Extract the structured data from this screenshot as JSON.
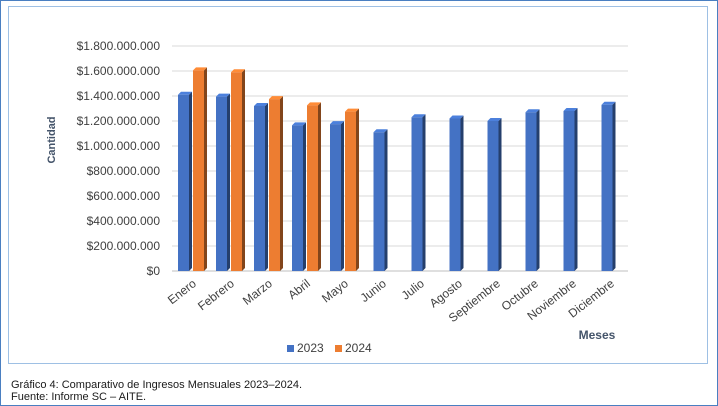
{
  "chart_data": {
    "type": "bar",
    "categories": [
      "Enero",
      "Febrero",
      "Marzo",
      "Abril",
      "Mayo",
      "Junio",
      "Julio",
      "Agosto",
      "Septiembre",
      "Octubre",
      "Noviembre",
      "Diciembre"
    ],
    "series": [
      {
        "name": "2023",
        "color": "#4472c4",
        "values": [
          1410000000,
          1395000000,
          1320000000,
          1165000000,
          1175000000,
          1110000000,
          1230000000,
          1220000000,
          1200000000,
          1270000000,
          1280000000,
          1330000000
        ]
      },
      {
        "name": "2024",
        "color": "#ed7d31",
        "values": [
          1605000000,
          1590000000,
          1375000000,
          1325000000,
          1275000000,
          null,
          null,
          null,
          null,
          null,
          null,
          null
        ]
      }
    ],
    "ylabel": "Cantidad",
    "xlabel": "Meses",
    "ylim": [
      0,
      1800000000
    ],
    "yticks": [
      "$0",
      "$200.000.000",
      "$400.000.000",
      "$600.000.000",
      "$800.000.000",
      "$1.000.000.000",
      "$1.200.000.000",
      "$1.400.000.000",
      "$1.600.000.000",
      "$1.800.000.000"
    ],
    "grid": true,
    "legend_position": "bottom"
  },
  "caption": {
    "line1": "Gráfico 4: Comparativo  de  Ingresos Mensuales  2023–2024.",
    "line2": "Fuente:  Informe SC – AITE."
  }
}
